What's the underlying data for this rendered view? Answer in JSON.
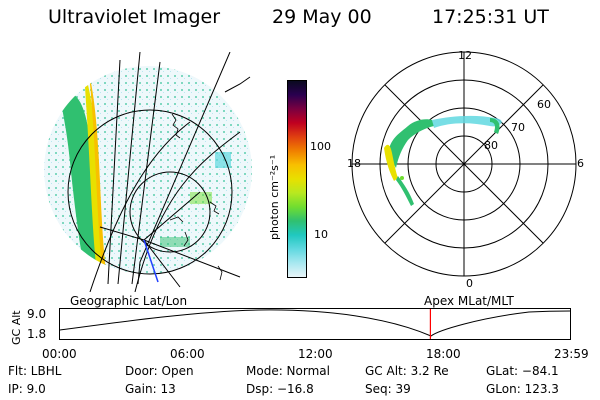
{
  "header": {
    "title": "Ultraviolet Imager",
    "date": "29 May 00",
    "time": "17:25:31 UT"
  },
  "colorbar": {
    "unit_label": "photon cm⁻²s⁻¹",
    "ticks": [
      "100",
      "10"
    ],
    "colors": [
      "#0a0a20",
      "#2a0050",
      "#7a0040",
      "#c00020",
      "#e04010",
      "#f08000",
      "#f8c000",
      "#e8e000",
      "#b8e820",
      "#70dd30",
      "#30c070",
      "#20c8c0",
      "#60d8e0",
      "#a8e8f0",
      "#e8f4f8"
    ]
  },
  "polar_plot": {
    "mlt_labels": {
      "top": "12",
      "left": "18",
      "right": "6",
      "bottom": "0"
    },
    "lat_labels": [
      "60",
      "70",
      "80"
    ]
  },
  "timeline": {
    "left_label": "Geographic Lat/Lon",
    "right_label": "Apex MLat/MLT",
    "y_axis_title": "GC Alt",
    "y_ticks": [
      "9.0",
      "1.8"
    ],
    "x_ticks": [
      "00:00",
      "06:00",
      "12:00",
      "18:00",
      "23:59"
    ],
    "marker_time_hours": 17.42,
    "marker_color": "#ff0000"
  },
  "status": {
    "flt": "Flt: LBHL",
    "ip": "IP:  9.0",
    "door": "Door: Open",
    "gain": "Gain: 13",
    "mode": "Mode: Normal",
    "dsp": "Dsp:   −16.8",
    "gc_alt": "GC Alt: 3.2 Re",
    "seq": "Seq: 39",
    "glat": "GLat: −84.1",
    "glon": "GLon: 123.3"
  }
}
